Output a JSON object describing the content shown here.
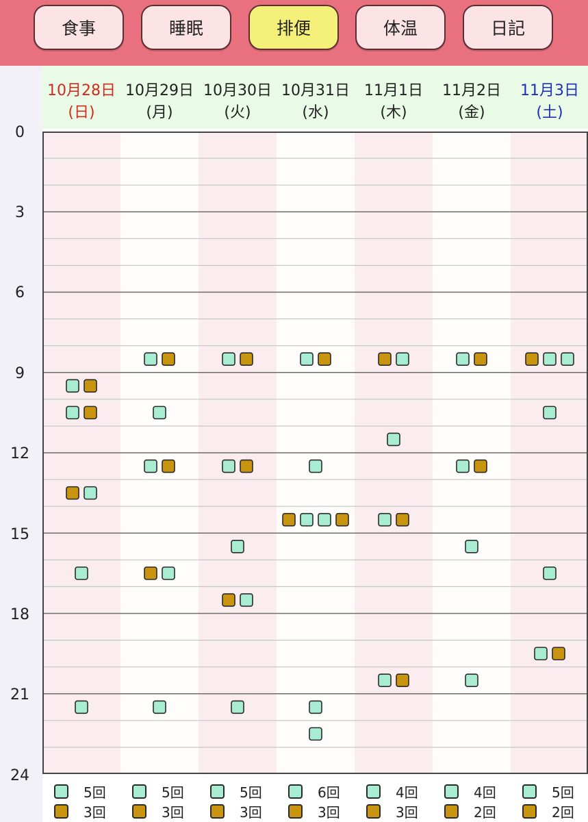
{
  "tabs": [
    {
      "label": "食事",
      "active": false
    },
    {
      "label": "睡眠",
      "active": false
    },
    {
      "label": "排便",
      "active": true
    },
    {
      "label": "体温",
      "active": false
    },
    {
      "label": "日記",
      "active": false
    }
  ],
  "days": [
    {
      "date": "10月28日",
      "weekday": "(日)",
      "kind": "sun",
      "counts": {
        "green": "5回",
        "brown": "3回"
      }
    },
    {
      "date": "10月29日",
      "weekday": "(月)",
      "kind": "weekday",
      "counts": {
        "green": "5回",
        "brown": "3回"
      }
    },
    {
      "date": "10月30日",
      "weekday": "(火)",
      "kind": "weekday",
      "counts": {
        "green": "5回",
        "brown": "3回"
      }
    },
    {
      "date": "10月31日",
      "weekday": "(水)",
      "kind": "weekday",
      "counts": {
        "green": "6回",
        "brown": "3回"
      }
    },
    {
      "date": "11月1日",
      "weekday": "(木)",
      "kind": "weekday",
      "counts": {
        "green": "4回",
        "brown": "3回"
      }
    },
    {
      "date": "11月2日",
      "weekday": "(金)",
      "kind": "weekday",
      "counts": {
        "green": "4回",
        "brown": "2回"
      }
    },
    {
      "date": "11月3日",
      "weekday": "(土)",
      "kind": "sat",
      "counts": {
        "green": "5回",
        "brown": "2回"
      }
    }
  ],
  "y_axis": {
    "labels": [
      "0",
      "3",
      "6",
      "9",
      "12",
      "15",
      "18",
      "21",
      "24"
    ],
    "range": [
      0,
      24
    ]
  },
  "colors": {
    "topbar": "#e8707f",
    "tab_bg": "#fbe3e6",
    "tab_active": "#f5f07a",
    "green_marker": "#a8ecd2",
    "brown_marker": "#c9940f",
    "column_pink": "#fbecef",
    "column_white": "#fffdf9",
    "header_bg": "#e9fbe7"
  },
  "chart_data": {
    "type": "scatter",
    "y_unit": "hour",
    "ylim": [
      0,
      24
    ],
    "categories": [
      "10月28日",
      "10月29日",
      "10月30日",
      "10月31日",
      "11月1日",
      "11月2日",
      "11月3日"
    ],
    "rows": [
      [
        {
          "hour": 9.5,
          "marks": [
            "green",
            "brown"
          ]
        },
        {
          "hour": 10.5,
          "marks": [
            "green",
            "brown"
          ]
        },
        {
          "hour": 13.5,
          "marks": [
            "brown",
            "green"
          ]
        },
        {
          "hour": 16.5,
          "marks": [
            "green"
          ]
        },
        {
          "hour": 21.5,
          "marks": [
            "green"
          ]
        }
      ],
      [
        {
          "hour": 8.5,
          "marks": [
            "green",
            "brown"
          ]
        },
        {
          "hour": 10.5,
          "marks": [
            "green"
          ]
        },
        {
          "hour": 12.5,
          "marks": [
            "green",
            "brown"
          ]
        },
        {
          "hour": 16.5,
          "marks": [
            "brown",
            "green"
          ]
        },
        {
          "hour": 21.5,
          "marks": [
            "green"
          ]
        }
      ],
      [
        {
          "hour": 8.5,
          "marks": [
            "green",
            "brown"
          ]
        },
        {
          "hour": 12.5,
          "marks": [
            "green",
            "brown"
          ]
        },
        {
          "hour": 15.5,
          "marks": [
            "green"
          ]
        },
        {
          "hour": 17.5,
          "marks": [
            "brown",
            "green"
          ]
        },
        {
          "hour": 21.5,
          "marks": [
            "green"
          ]
        }
      ],
      [
        {
          "hour": 8.5,
          "marks": [
            "green",
            "brown"
          ]
        },
        {
          "hour": 12.5,
          "marks": [
            "green"
          ]
        },
        {
          "hour": 14.5,
          "marks": [
            "brown",
            "green",
            "green",
            "brown"
          ]
        },
        {
          "hour": 21.5,
          "marks": [
            "green"
          ]
        },
        {
          "hour": 22.5,
          "marks": [
            "green"
          ]
        }
      ],
      [
        {
          "hour": 8.5,
          "marks": [
            "brown",
            "green"
          ]
        },
        {
          "hour": 11.5,
          "marks": [
            "green"
          ]
        },
        {
          "hour": 14.5,
          "marks": [
            "green",
            "brown"
          ]
        },
        {
          "hour": 20.5,
          "marks": [
            "green",
            "brown"
          ]
        }
      ],
      [
        {
          "hour": 8.5,
          "marks": [
            "green",
            "brown"
          ]
        },
        {
          "hour": 12.5,
          "marks": [
            "green",
            "brown"
          ]
        },
        {
          "hour": 15.5,
          "marks": [
            "green"
          ]
        },
        {
          "hour": 20.5,
          "marks": [
            "green"
          ]
        }
      ],
      [
        {
          "hour": 8.5,
          "marks": [
            "brown",
            "green",
            "green"
          ]
        },
        {
          "hour": 10.5,
          "marks": [
            "green"
          ]
        },
        {
          "hour": 16.5,
          "marks": [
            "green"
          ]
        },
        {
          "hour": 19.5,
          "marks": [
            "green",
            "brown"
          ]
        }
      ]
    ]
  }
}
